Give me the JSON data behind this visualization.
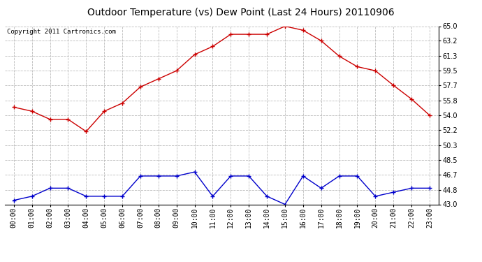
{
  "title": "Outdoor Temperature (vs) Dew Point (Last 24 Hours) 20110906",
  "copyright_text": "Copyright 2011 Cartronics.com",
  "x_labels": [
    "00:00",
    "01:00",
    "02:00",
    "03:00",
    "04:00",
    "05:00",
    "06:00",
    "07:00",
    "08:00",
    "09:00",
    "10:00",
    "11:00",
    "12:00",
    "13:00",
    "14:00",
    "15:00",
    "16:00",
    "17:00",
    "18:00",
    "19:00",
    "20:00",
    "21:00",
    "22:00",
    "23:00"
  ],
  "temp_data": [
    55.0,
    54.5,
    53.5,
    53.5,
    52.0,
    54.5,
    55.5,
    57.5,
    58.5,
    59.5,
    61.5,
    62.5,
    64.0,
    64.0,
    64.0,
    65.0,
    64.5,
    63.2,
    61.3,
    60.0,
    59.5,
    57.7,
    56.0,
    54.0
  ],
  "dew_data": [
    43.5,
    44.0,
    45.0,
    45.0,
    44.0,
    44.0,
    44.0,
    46.5,
    46.5,
    46.5,
    47.0,
    44.0,
    46.5,
    46.5,
    44.0,
    43.0,
    46.5,
    45.0,
    46.5,
    46.5,
    44.0,
    44.5,
    45.0,
    45.0
  ],
  "temp_color": "#cc0000",
  "dew_color": "#0000cc",
  "bg_color": "#ffffff",
  "plot_bg_color": "#ffffff",
  "grid_color": "#bbbbbb",
  "ylim": [
    43.0,
    65.0
  ],
  "yticks": [
    43.0,
    44.8,
    46.7,
    48.5,
    50.3,
    52.2,
    54.0,
    55.8,
    57.7,
    59.5,
    61.3,
    63.2,
    65.0
  ],
  "title_fontsize": 10,
  "copyright_fontsize": 6.5,
  "axis_fontsize": 7
}
